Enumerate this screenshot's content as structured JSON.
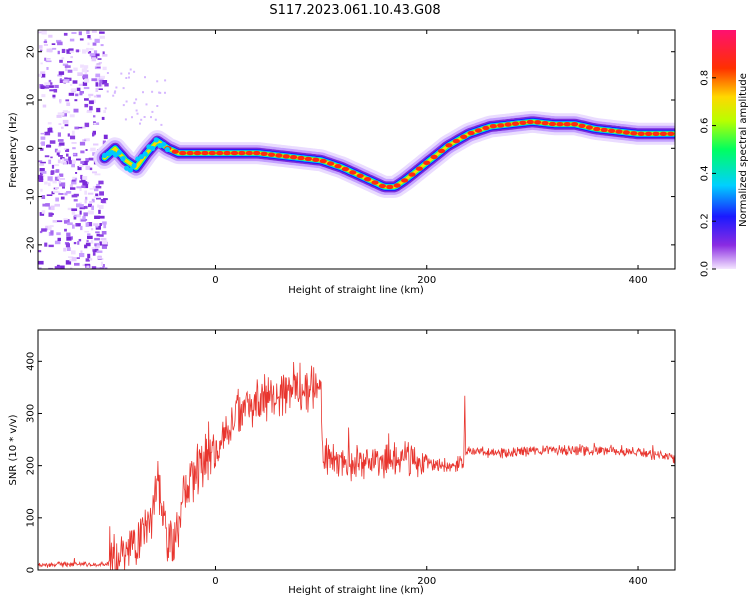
{
  "figure": {
    "title": "S117.2023.061.10.43.G08"
  },
  "colors": {
    "snr_line": "#e8352e",
    "axes": "#000000"
  },
  "chart_data": [
    {
      "type": "heatmap",
      "title": "S117.2023.061.10.43.G08",
      "xlabel": "Height of straight line (km)",
      "ylabel": "Frequency (Hz)",
      "xlim": [
        -168,
        435
      ],
      "ylim": [
        -25,
        24.5
      ],
      "x_ticks": [
        "0",
        "200",
        "400"
      ],
      "y_ticks": [
        "20",
        "10",
        "0",
        "-10",
        "-20"
      ],
      "colorbar": {
        "label": "Normalized spectral amplitude",
        "range": [
          0,
          1
        ],
        "ticks": [
          "0.0",
          "0.2",
          "0.4",
          "0.6",
          "0.8"
        ],
        "colormap": "rainbow (violet → blue → cyan → green → yellow → red → magenta)"
      },
      "ridge": {
        "x": [
          -105,
          -95,
          -85,
          -75,
          -65,
          -55,
          -45,
          -35,
          -25,
          -15,
          0,
          20,
          40,
          60,
          80,
          100,
          120,
          140,
          150,
          160,
          170,
          180,
          200,
          220,
          240,
          260,
          280,
          300,
          320,
          340,
          360,
          380,
          400,
          420,
          435
        ],
        "y": [
          -2,
          0,
          -2.5,
          -4,
          -1,
          1.5,
          0,
          -1,
          -1,
          -1,
          -1,
          -1,
          -1,
          -1.5,
          -2,
          -2.5,
          -4,
          -6,
          -7,
          -8,
          -8,
          -6.5,
          -3,
          0.5,
          3,
          4.5,
          5,
          5.5,
          5,
          5,
          4,
          3.5,
          3,
          3,
          3
        ]
      },
      "noise_region_x": [
        -168,
        -105
      ]
    },
    {
      "type": "line",
      "xlabel": "Height of straight line (km)",
      "ylabel": "SNR (10 * v/v)",
      "xlim": [
        -168,
        435
      ],
      "ylim": [
        0,
        460
      ],
      "x_ticks": [
        "0",
        "200",
        "400"
      ],
      "y_ticks": [
        "0",
        "100",
        "200",
        "300",
        "400"
      ],
      "series": [
        {
          "color": "#e8352e",
          "x": [
            -168,
            -150,
            -130,
            -110,
            -100,
            -90,
            -80,
            -70,
            -60,
            -55,
            -50,
            -45,
            -40,
            -35,
            -30,
            -20,
            -10,
            0,
            10,
            20,
            30,
            40,
            50,
            60,
            70,
            80,
            90,
            100,
            101,
            110,
            120,
            130,
            140,
            150,
            160,
            170,
            180,
            190,
            200,
            210,
            220,
            235,
            236,
            237,
            240,
            260,
            280,
            300,
            320,
            340,
            360,
            380,
            400,
            420,
            435
          ],
          "y": [
            10,
            10,
            12,
            10,
            12,
            25,
            45,
            70,
            100,
            180,
            120,
            70,
            40,
            80,
            150,
            180,
            200,
            230,
            260,
            300,
            320,
            330,
            335,
            340,
            345,
            350,
            355,
            350,
            220,
            215,
            210,
            205,
            210,
            210,
            205,
            210,
            215,
            210,
            205,
            200,
            200,
            205,
            330,
            225,
            230,
            225,
            225,
            228,
            230,
            228,
            230,
            230,
            225,
            222,
            215
          ]
        }
      ]
    }
  ]
}
